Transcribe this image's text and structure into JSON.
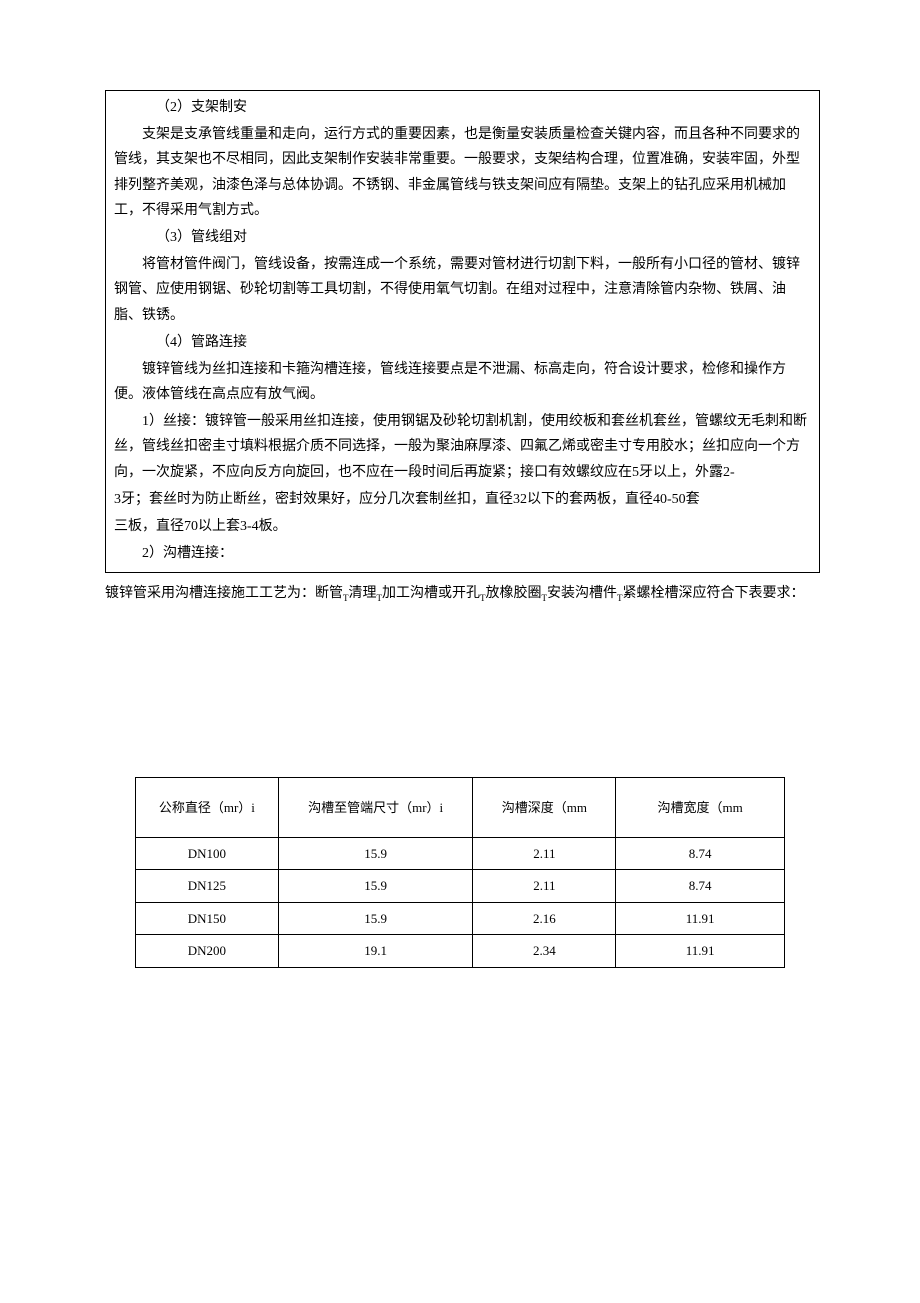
{
  "sections": {
    "s2": {
      "heading": "（2）支架制安",
      "body": "支架是支承管线重量和走向，运行方式的重要因素，也是衡量安装质量检查关键内容，而且各种不同要求的管线，其支架也不尽相同，因此支架制作安装非常重要。一般要求，支架结构合理，位置准确，安装牢固，外型排列整齐美观，油漆色泽与总体协调。不锈钢、非金属管线与铁支架间应有隔垫。支架上的钻孔应采用机械加工，不得采用气割方式。"
    },
    "s3": {
      "heading": "（3）管线组对",
      "body": "将管材管件阀门，管线设备，按需连成一个系统，需要对管材进行切割下料，一般所有小口径的管材、镀锌钢管、应使用钢锯、砂轮切割等工具切割，不得使用氧气切割。在组对过程中，注意清除管内杂物、铁屑、油脂、铁锈。"
    },
    "s4": {
      "heading": "（4）管路连接",
      "body": "镀锌管线为丝扣连接和卡箍沟槽连接，管线连接要点是不泄漏、标高走向，符合设计要求，检修和操作方便。液体管线在高点应有放气阀。",
      "item1_a": "1）丝接：镀锌管一般采用丝扣连接，使用钢锯及砂轮切割机割，使用绞板和套丝机套丝，管螺纹无毛刺和断丝，管线丝扣密圭寸填料根据介质不同选择，一般为聚油麻厚漆、四氟乙烯或密圭寸专用胶水；丝扣应向一个方向，一次旋紧，不应向反方向旋回，也不应在一段时间后再旋紧；接口有效螺纹应在5牙以上，外露2-",
      "item1_b": "3牙；套丝时为防止断丝，密封效果好，应分几次套制丝扣，直径32以下的套两板，直径40-50套",
      "item1_c": "三板，直径70以上套3-4板。",
      "item2": "2）沟槽连接："
    }
  },
  "standalone": {
    "prefix": "镀锌管采用沟槽连接施工工艺为：断管",
    "sep": "T",
    "p2": "清理",
    "p3": "加工沟槽或开孔",
    "p4": "放橡胶圈",
    "p5": "安装沟槽件",
    "p6": "紧螺栓槽深应符合下表要求："
  },
  "table": {
    "type": "table",
    "columns": [
      "公称直径（mr）i",
      "沟槽至管端尺寸（mr）i",
      "沟槽深度（mm",
      "沟槽宽度（mm"
    ],
    "rows": [
      [
        "DN100",
        "15.9",
        "2.11",
        "8.74"
      ],
      [
        "DN125",
        "15.9",
        "2.11",
        "8.74"
      ],
      [
        "DN150",
        "15.9",
        "2.16",
        "11.91"
      ],
      [
        "DN200",
        "19.1",
        "2.34",
        "11.91"
      ]
    ],
    "col_widths_pct": [
      22,
      30,
      22,
      26
    ],
    "border_color": "#000000",
    "background_color": "#ffffff",
    "header_padding": "18px 6px",
    "cell_padding": "4px 6px",
    "font_size_pt": 10,
    "text_align": "center"
  },
  "typography": {
    "body_font": "SimSun",
    "body_size_pt": 10.5,
    "line_height": 1.8,
    "text_color": "#000000",
    "page_bg": "#ffffff"
  }
}
